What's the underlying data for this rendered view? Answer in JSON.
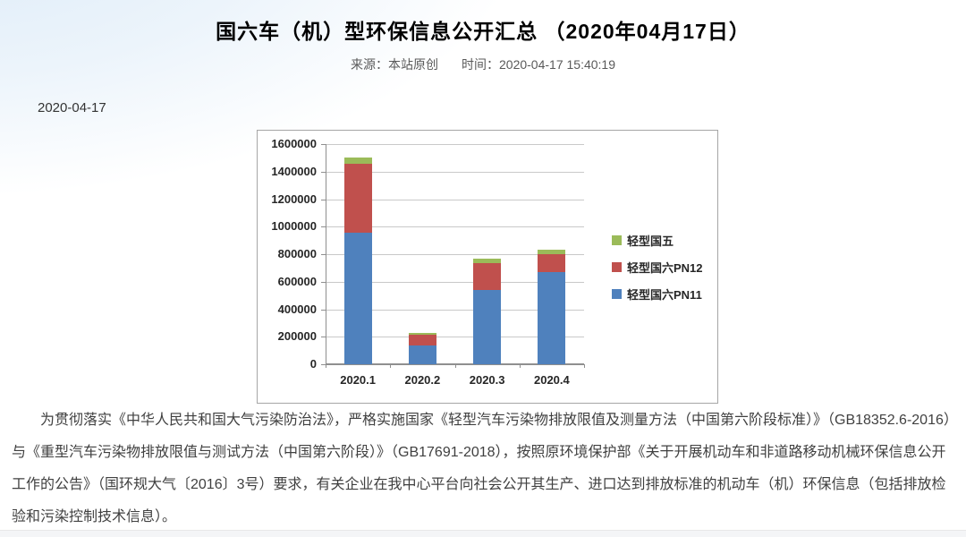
{
  "header": {
    "title": "国六车（机）型环保信息公开汇总 （2020年04月17日）",
    "source_label": "来源：",
    "source_value": "本站原创",
    "time_label": "时间：",
    "time_value": "2020-04-17 15:40:19"
  },
  "article": {
    "date": "2020-04-17",
    "paragraph": "为贯彻落实《中华人民共和国大气污染防治法》，严格实施国家《轻型汽车污染物排放限值及测量方法（中国第六阶段标准）》（GB18352.6-2016）与《重型汽车污染物排放限值与测试方法（中国第六阶段）》（GB17691-2018），按照原环境保护部《关于开展机动车和非道路移动机械环保信息公开工作的公告》（国环规大气〔2016〕3号）要求，有关企业在我中心平台向社会公开其生产、进口达到排放标准的机动车（机）环保信息（包括排放检验和污染控制技术信息）。"
  },
  "chart_data": {
    "type": "bar",
    "stacked": true,
    "title": "",
    "xlabel": "",
    "ylabel": "",
    "categories": [
      "2020.1",
      "2020.2",
      "2020.3",
      "2020.4"
    ],
    "series": [
      {
        "name": "轻型国六PN11",
        "color": "#4F81BD",
        "values": [
          955000,
          135000,
          540000,
          670000
        ]
      },
      {
        "name": "轻型国六PN12",
        "color": "#C0504D",
        "values": [
          505000,
          80000,
          195000,
          130000
        ]
      },
      {
        "name": "轻型国五",
        "color": "#9BBB59",
        "values": [
          45000,
          10000,
          30000,
          30000
        ]
      }
    ],
    "legend_order": [
      "轻型国五",
      "轻型国六PN12",
      "轻型国六PN11"
    ],
    "legend_position": "right",
    "grid": true,
    "ylim": [
      0,
      1600000
    ],
    "ytick_step": 200000
  }
}
